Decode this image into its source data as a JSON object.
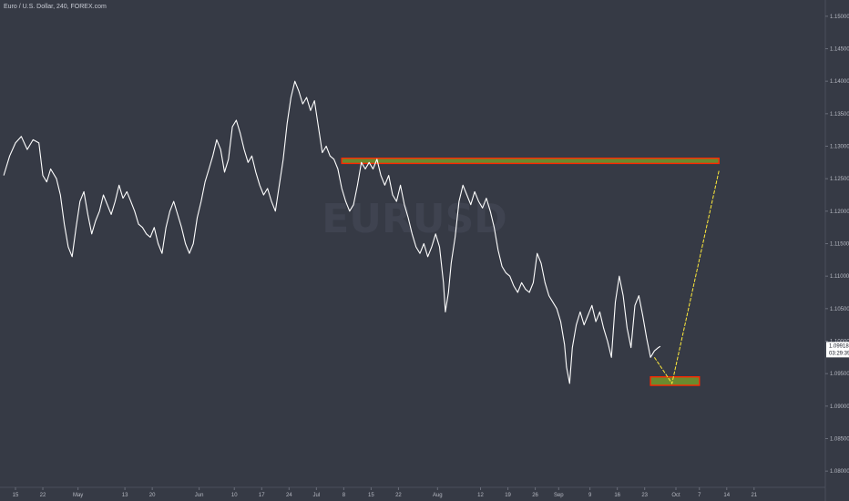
{
  "chart_data": {
    "type": "line",
    "title": "Euro / U.S. Dollar, 240, FOREX.com",
    "watermark": "EURUSD",
    "ylim": [
      1.0775,
      1.1525
    ],
    "y_ticks": [
      {
        "label": "1.15000",
        "value": 1.15
      },
      {
        "label": "1.14500",
        "value": 1.145
      },
      {
        "label": "1.14000",
        "value": 1.14
      },
      {
        "label": "1.13500",
        "value": 1.135
      },
      {
        "label": "1.13000",
        "value": 1.13
      },
      {
        "label": "1.12500",
        "value": 1.125
      },
      {
        "label": "1.12000",
        "value": 1.12
      },
      {
        "label": "1.11500",
        "value": 1.115
      },
      {
        "label": "1.11000",
        "value": 1.11
      },
      {
        "label": "1.10500",
        "value": 1.105
      },
      {
        "label": "1.10000",
        "value": 1.1
      },
      {
        "label": "1.09500",
        "value": 1.095
      },
      {
        "label": "1.09000",
        "value": 1.09
      },
      {
        "label": "1.08500",
        "value": 1.085
      },
      {
        "label": "1.08000",
        "value": 1.08
      }
    ],
    "x_ticks": [
      {
        "label": "15",
        "day": 0
      },
      {
        "label": "22",
        "day": 7
      },
      {
        "label": "May",
        "day": 16
      },
      {
        "label": "13",
        "day": 28
      },
      {
        "label": "20",
        "day": 35
      },
      {
        "label": "Jun",
        "day": 47
      },
      {
        "label": "10",
        "day": 56
      },
      {
        "label": "17",
        "day": 63
      },
      {
        "label": "24",
        "day": 70
      },
      {
        "label": "Jul",
        "day": 77
      },
      {
        "label": "8",
        "day": 84
      },
      {
        "label": "15",
        "day": 91
      },
      {
        "label": "22",
        "day": 98
      },
      {
        "label": "Aug",
        "day": 108
      },
      {
        "label": "12",
        "day": 119
      },
      {
        "label": "19",
        "day": 126
      },
      {
        "label": "26",
        "day": 133
      },
      {
        "label": "Sep",
        "day": 139
      },
      {
        "label": "9",
        "day": 147
      },
      {
        "label": "16",
        "day": 154
      },
      {
        "label": "23",
        "day": 161
      },
      {
        "label": "Oct",
        "day": 169
      },
      {
        "label": "7",
        "day": 175
      },
      {
        "label": "14",
        "day": 182
      },
      {
        "label": "21",
        "day": 189
      }
    ],
    "series": [
      {
        "values": [
          [
            -3,
            1.1255
          ],
          [
            -1.5,
            1.1285
          ],
          [
            0,
            1.1305
          ],
          [
            1.5,
            1.1315
          ],
          [
            3,
            1.1295
          ],
          [
            4.5,
            1.131
          ],
          [
            6,
            1.1305
          ],
          [
            7,
            1.1255
          ],
          [
            8,
            1.1245
          ],
          [
            9,
            1.1265
          ],
          [
            10.5,
            1.125
          ],
          [
            11.5,
            1.1225
          ],
          [
            12.5,
            1.118
          ],
          [
            13.5,
            1.1145
          ],
          [
            14.5,
            1.113
          ],
          [
            15.5,
            1.1175
          ],
          [
            16.5,
            1.1215
          ],
          [
            17.5,
            1.123
          ],
          [
            18.5,
            1.1195
          ],
          [
            19.5,
            1.1165
          ],
          [
            20.5,
            1.1185
          ],
          [
            21.5,
            1.12
          ],
          [
            22.5,
            1.1225
          ],
          [
            23.5,
            1.121
          ],
          [
            24.5,
            1.1195
          ],
          [
            25.5,
            1.1215
          ],
          [
            26.5,
            1.124
          ],
          [
            27.5,
            1.122
          ],
          [
            28.5,
            1.123
          ],
          [
            29.5,
            1.1215
          ],
          [
            30.5,
            1.12
          ],
          [
            31.5,
            1.118
          ],
          [
            32.5,
            1.1175
          ],
          [
            33.5,
            1.1165
          ],
          [
            34.5,
            1.116
          ],
          [
            35.5,
            1.1175
          ],
          [
            36.5,
            1.115
          ],
          [
            37.5,
            1.1135
          ],
          [
            38.5,
            1.1175
          ],
          [
            39.5,
            1.12
          ],
          [
            40.5,
            1.1215
          ],
          [
            41.5,
            1.1195
          ],
          [
            42.5,
            1.1175
          ],
          [
            43.5,
            1.115
          ],
          [
            44.5,
            1.1135
          ],
          [
            45.5,
            1.115
          ],
          [
            46.5,
            1.119
          ],
          [
            47.5,
            1.1215
          ],
          [
            48.5,
            1.1245
          ],
          [
            49.5,
            1.1265
          ],
          [
            50.5,
            1.1285
          ],
          [
            51.5,
            1.131
          ],
          [
            52.5,
            1.1295
          ],
          [
            53.5,
            1.126
          ],
          [
            54.5,
            1.128
          ],
          [
            55.5,
            1.133
          ],
          [
            56.5,
            1.134
          ],
          [
            57.5,
            1.132
          ],
          [
            58.5,
            1.1295
          ],
          [
            59.5,
            1.1275
          ],
          [
            60.5,
            1.1285
          ],
          [
            61.5,
            1.126
          ],
          [
            62.5,
            1.124
          ],
          [
            63.5,
            1.1225
          ],
          [
            64.5,
            1.1235
          ],
          [
            65.5,
            1.1215
          ],
          [
            66.5,
            1.12
          ],
          [
            67.5,
            1.124
          ],
          [
            68.5,
            1.128
          ],
          [
            69.5,
            1.1335
          ],
          [
            70.5,
            1.1375
          ],
          [
            71.5,
            1.14
          ],
          [
            72.5,
            1.1385
          ],
          [
            73.5,
            1.1365
          ],
          [
            74.5,
            1.1375
          ],
          [
            75.5,
            1.1355
          ],
          [
            76.5,
            1.137
          ],
          [
            77.5,
            1.133
          ],
          [
            78.5,
            1.129
          ],
          [
            79.5,
            1.13
          ],
          [
            80.5,
            1.1285
          ],
          [
            81.5,
            1.128
          ],
          [
            82.5,
            1.1265
          ],
          [
            83.5,
            1.1235
          ],
          [
            84.5,
            1.1215
          ],
          [
            85.5,
            1.12
          ],
          [
            86.5,
            1.121
          ],
          [
            87.5,
            1.124
          ],
          [
            88.5,
            1.1275
          ],
          [
            89.5,
            1.1265
          ],
          [
            90.5,
            1.1275
          ],
          [
            91.5,
            1.1265
          ],
          [
            92.5,
            1.128
          ],
          [
            93.5,
            1.1255
          ],
          [
            94.5,
            1.124
          ],
          [
            95.5,
            1.1255
          ],
          [
            96.5,
            1.1225
          ],
          [
            97.5,
            1.1215
          ],
          [
            98.5,
            1.124
          ],
          [
            99.5,
            1.121
          ],
          [
            100.5,
            1.119
          ],
          [
            101.5,
            1.1165
          ],
          [
            102.5,
            1.1145
          ],
          [
            103.5,
            1.1135
          ],
          [
            104.5,
            1.115
          ],
          [
            105.5,
            1.113
          ],
          [
            106.5,
            1.1145
          ],
          [
            107.5,
            1.1165
          ],
          [
            108.5,
            1.1145
          ],
          [
            109.5,
            1.109
          ],
          [
            110,
            1.1045
          ],
          [
            110.8,
            1.1075
          ],
          [
            111.5,
            1.112
          ],
          [
            112.5,
            1.116
          ],
          [
            113.5,
            1.1215
          ],
          [
            114.5,
            1.124
          ],
          [
            115.5,
            1.1225
          ],
          [
            116.5,
            1.121
          ],
          [
            117.5,
            1.123
          ],
          [
            118.5,
            1.1215
          ],
          [
            119.5,
            1.1205
          ],
          [
            120.5,
            1.122
          ],
          [
            121.5,
            1.12
          ],
          [
            122.5,
            1.1175
          ],
          [
            123.5,
            1.114
          ],
          [
            124.5,
            1.1115
          ],
          [
            125.5,
            1.1105
          ],
          [
            126.5,
            1.11
          ],
          [
            127.5,
            1.1085
          ],
          [
            128.5,
            1.1075
          ],
          [
            129.5,
            1.109
          ],
          [
            130.5,
            1.108
          ],
          [
            131.5,
            1.1075
          ],
          [
            132.5,
            1.109
          ],
          [
            133.5,
            1.1135
          ],
          [
            134.5,
            1.112
          ],
          [
            135.5,
            1.109
          ],
          [
            136.5,
            1.107
          ],
          [
            137.5,
            1.106
          ],
          [
            138.5,
            1.105
          ],
          [
            139.5,
            1.103
          ],
          [
            140.5,
            1.0995
          ],
          [
            141,
            1.096
          ],
          [
            141.8,
            1.0935
          ],
          [
            142.5,
            1.099
          ],
          [
            143.5,
            1.1025
          ],
          [
            144.5,
            1.1045
          ],
          [
            145.5,
            1.1025
          ],
          [
            146.5,
            1.104
          ],
          [
            147.5,
            1.1055
          ],
          [
            148.5,
            1.103
          ],
          [
            149.5,
            1.1045
          ],
          [
            150.5,
            1.102
          ],
          [
            151.5,
            1.1
          ],
          [
            152.5,
            1.0975
          ],
          [
            153.5,
            1.106
          ],
          [
            154.5,
            1.11
          ],
          [
            155.5,
            1.107
          ],
          [
            156.5,
            1.102
          ],
          [
            157.5,
            1.099
          ],
          [
            158.5,
            1.1055
          ],
          [
            159.5,
            1.107
          ],
          [
            160.5,
            1.104
          ],
          [
            161.5,
            1.1005
          ],
          [
            162.5,
            1.0975
          ],
          [
            163.5,
            1.0985
          ],
          [
            164.5,
            1.099
          ],
          [
            165,
            1.0992
          ]
        ]
      }
    ],
    "current_price": {
      "price_label": "1.09918",
      "time_label": "03:29:39",
      "value": 1.09918
    },
    "annotations": [
      {
        "type": "zone",
        "day_start": 83.5,
        "day_end": 180,
        "y_top": 1.12815,
        "y_bottom": 1.12735,
        "fill": "#6b8a2e",
        "border": "#ff2a00"
      },
      {
        "type": "zone",
        "day_start": 162.5,
        "day_end": 175,
        "y_top": 1.0945,
        "y_bottom": 1.0932,
        "fill": "#6b8a2e",
        "border": "#ff2a00"
      },
      {
        "type": "path",
        "color": "#ffeb3b",
        "points": [
          [
            163.5,
            1.0975
          ],
          [
            168,
            1.0935
          ],
          [
            180,
            1.1262
          ]
        ]
      }
    ],
    "colors": {
      "background": "#363a45",
      "series": "#ffffff",
      "text": "#b6b9c2",
      "axis": "#4a4e5a"
    }
  }
}
